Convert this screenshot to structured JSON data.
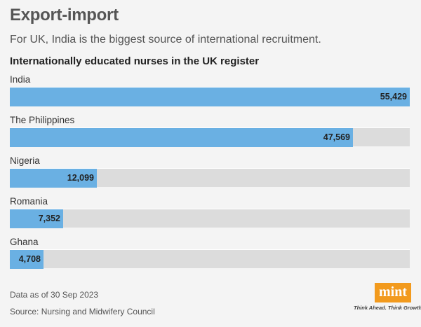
{
  "header": {
    "title": "Export-import",
    "subtitle": "For UK, India is the biggest source of international recruitment."
  },
  "chart_data": {
    "type": "bar",
    "orientation": "horizontal",
    "title": "Internationally educated nurses in the UK register",
    "categories": [
      "India",
      "The Philippines",
      "Nigeria",
      "Romania",
      "Ghana"
    ],
    "values": [
      55429,
      47569,
      12099,
      7352,
      4708
    ],
    "value_labels": [
      "55,429",
      "47,569",
      "12,099",
      "7,352",
      "4,708"
    ],
    "xlim": [
      0,
      55429
    ],
    "grid": false,
    "bar_color": "#6ab0e3",
    "track_color": "#dcdcdc"
  },
  "footer": {
    "note": "Data as of 30 Sep 2023",
    "source": "Source: Nursing and Midwifery Council"
  },
  "logo": {
    "name": "mint",
    "tagline": "Think Ahead. Think Growth.",
    "color": "#f29a1d"
  }
}
